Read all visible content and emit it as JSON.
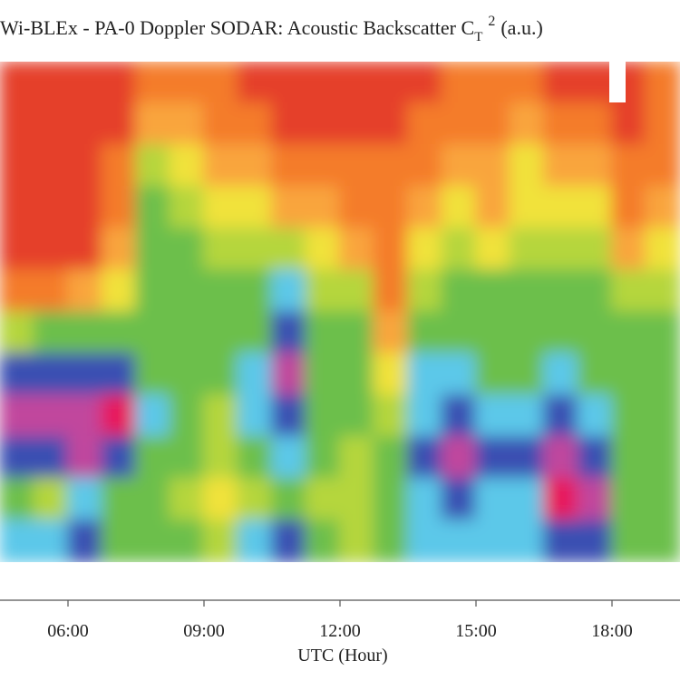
{
  "chart_data": {
    "type": "heatmap",
    "title": "Wi-BLEx - PA-0 Doppler SODAR: Acoustic Backscatter C",
    "title_subscript": "T",
    "title_superscript": "2",
    "title_suffix": "(a.u.)",
    "x_label": "UTC (Hour)",
    "xlim": [
      4.5,
      19.5
    ],
    "xticks": [
      {
        "value": 6,
        "label": "06:00"
      },
      {
        "value": 9,
        "label": "09:00"
      },
      {
        "value": 12,
        "label": "12:00"
      },
      {
        "value": 15,
        "label": "15:00"
      },
      {
        "value": 18,
        "label": "18:00"
      }
    ],
    "xbins": [
      4.5,
      5.25,
      6,
      6.75,
      7.5,
      8.25,
      9,
      9.75,
      10.5,
      11.25,
      12,
      12.75,
      13.5,
      14.25,
      15,
      15.75,
      16.5,
      17.25,
      18,
      18.75,
      19.5
    ],
    "colors": [
      "#e5412b",
      "#f47b2c",
      "#f9a53e",
      "#f1e23b",
      "#b5d63c",
      "#6cbf4b",
      "#5cc8e9",
      "#3a4fb2",
      "#c1469d",
      "#e8195b"
    ],
    "z": [
      [
        0,
        0,
        0,
        0,
        0,
        1,
        4,
        7,
        8,
        7,
        5,
        6
      ],
      [
        0,
        0,
        0,
        0,
        0,
        1,
        5,
        7,
        8,
        7,
        4,
        6
      ],
      [
        0,
        0,
        0,
        0,
        0,
        2,
        5,
        7,
        8,
        8,
        6,
        7
      ],
      [
        0,
        0,
        1,
        1,
        2,
        3,
        5,
        7,
        9,
        7,
        5,
        5
      ],
      [
        1,
        2,
        4,
        5,
        5,
        5,
        5,
        5,
        6,
        5,
        5,
        5
      ],
      [
        1,
        2,
        3,
        4,
        5,
        5,
        5,
        5,
        5,
        5,
        4,
        5
      ],
      [
        1,
        1,
        2,
        3,
        4,
        5,
        5,
        5,
        4,
        4,
        3,
        4
      ],
      [
        0,
        1,
        2,
        3,
        4,
        5,
        5,
        6,
        6,
        5,
        4,
        6
      ],
      [
        0,
        0,
        1,
        2,
        4,
        6,
        7,
        8,
        7,
        6,
        5,
        7
      ],
      [
        0,
        0,
        1,
        2,
        3,
        4,
        5,
        5,
        5,
        5,
        4,
        5
      ],
      [
        0,
        0,
        1,
        1,
        2,
        4,
        5,
        5,
        5,
        4,
        4,
        4
      ],
      [
        0,
        0,
        1,
        1,
        1,
        1,
        2,
        3,
        4,
        5,
        5,
        5
      ],
      [
        0,
        1,
        1,
        2,
        3,
        4,
        5,
        6,
        6,
        7,
        6,
        6
      ],
      [
        1,
        1,
        2,
        3,
        4,
        5,
        5,
        6,
        7,
        8,
        7,
        6
      ],
      [
        1,
        1,
        2,
        2,
        3,
        5,
        5,
        5,
        6,
        7,
        6,
        6
      ],
      [
        1,
        2,
        3,
        3,
        4,
        5,
        5,
        5,
        6,
        7,
        6,
        6
      ],
      [
        0,
        1,
        2,
        3,
        4,
        5,
        5,
        6,
        7,
        8,
        9,
        7
      ],
      [
        0,
        1,
        2,
        3,
        4,
        5,
        5,
        5,
        6,
        7,
        8,
        7
      ],
      [
        0,
        0,
        1,
        1,
        2,
        4,
        5,
        5,
        5,
        5,
        5,
        5
      ],
      [
        1,
        1,
        1,
        2,
        3,
        4,
        5,
        5,
        5,
        5,
        5,
        5
      ]
    ]
  }
}
